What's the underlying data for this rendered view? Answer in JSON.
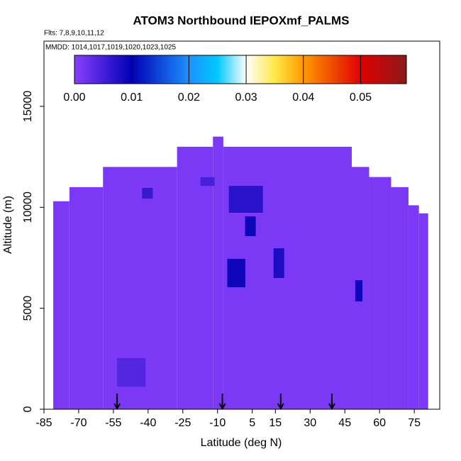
{
  "chart_data": {
    "type": "heatmap",
    "title": "ATOM3 Northbound IEPOXmf_PALMS",
    "flights": "Flts: 7,8,9,10,11,12",
    "dates": "MMDD: 1014,1017,1019,1020,1023,1025",
    "x_label": "Latitude (deg N)",
    "y_label": "Altitude (m)",
    "lat_edges": [
      -81,
      -74,
      -59.5,
      -27.5,
      -12,
      -7.5,
      48,
      55.5,
      65,
      72.5,
      77,
      81
    ],
    "tops": [
      10300,
      11000,
      12000,
      13000,
      13500,
      13000,
      12000,
      11500,
      11000,
      10100,
      9700
    ],
    "values": [
      0.001,
      0.001,
      0.001,
      0.001,
      0.001,
      0.001,
      0.001,
      0.001,
      0.001,
      0.001,
      0.001
    ],
    "patches": [
      {
        "lat": [
          -5.8,
          2.0
        ],
        "alt": [
          6040,
          7450
        ],
        "value": 0.009
      },
      {
        "lat": [
          -5.1,
          9.6
        ],
        "alt": [
          9730,
          11060
        ],
        "value": 0.007
      },
      {
        "lat": [
          1.9,
          6.5
        ],
        "alt": [
          8570,
          9550
        ],
        "value": 0.009
      },
      {
        "lat": [
          14.2,
          18.8
        ],
        "alt": [
          6500,
          7970
        ],
        "value": 0.008
      },
      {
        "lat": [
          49.5,
          52.6
        ],
        "alt": [
          5340,
          6390
        ],
        "value": 0.009
      },
      {
        "lat": [
          -53.4,
          -41.1
        ],
        "alt": [
          1120,
          2530
        ],
        "value": 0.004
      },
      {
        "lat": [
          -17.4,
          -11.3
        ],
        "alt": [
          11060,
          11490
        ],
        "value": 0.005
      },
      {
        "lat": [
          -42.6,
          -38
        ],
        "alt": [
          10430,
          10960
        ],
        "value": 0.006
      }
    ],
    "arrows": [
      -53.4,
      -7.9,
      17.3,
      39.4
    ],
    "xlim": [
      -85,
      86
    ],
    "ylim": [
      0,
      18230
    ],
    "xticks": [
      -85,
      -70,
      -55,
      -40,
      -25,
      -10,
      5,
      15,
      30,
      45,
      60,
      75
    ],
    "yticks": [
      0,
      5000,
      10000,
      15000
    ],
    "colorbar": {
      "lim": [
        0,
        0.058
      ],
      "ticks": [
        {
          "value": 0,
          "label": "0.00"
        },
        {
          "value": 0.01,
          "label": "0.01"
        },
        {
          "value": 0.02,
          "label": "0.02"
        },
        {
          "value": 0.03,
          "label": "0.03"
        },
        {
          "value": 0.04,
          "label": "0.04"
        },
        {
          "value": 0.05,
          "label": "0.05"
        }
      ],
      "colorscale": [
        [
          0,
          "#8a3ffc"
        ],
        [
          0.01,
          "#0000b4"
        ],
        [
          0.02,
          "#1e90ff"
        ],
        [
          0.025,
          "#00c8ff"
        ],
        [
          0.03,
          "#ffffff"
        ],
        [
          0.035,
          "#ffe84a"
        ],
        [
          0.04,
          "#ff9a00"
        ],
        [
          0.05,
          "#e00000"
        ],
        [
          0.058,
          "#8b1a1a"
        ]
      ]
    }
  }
}
